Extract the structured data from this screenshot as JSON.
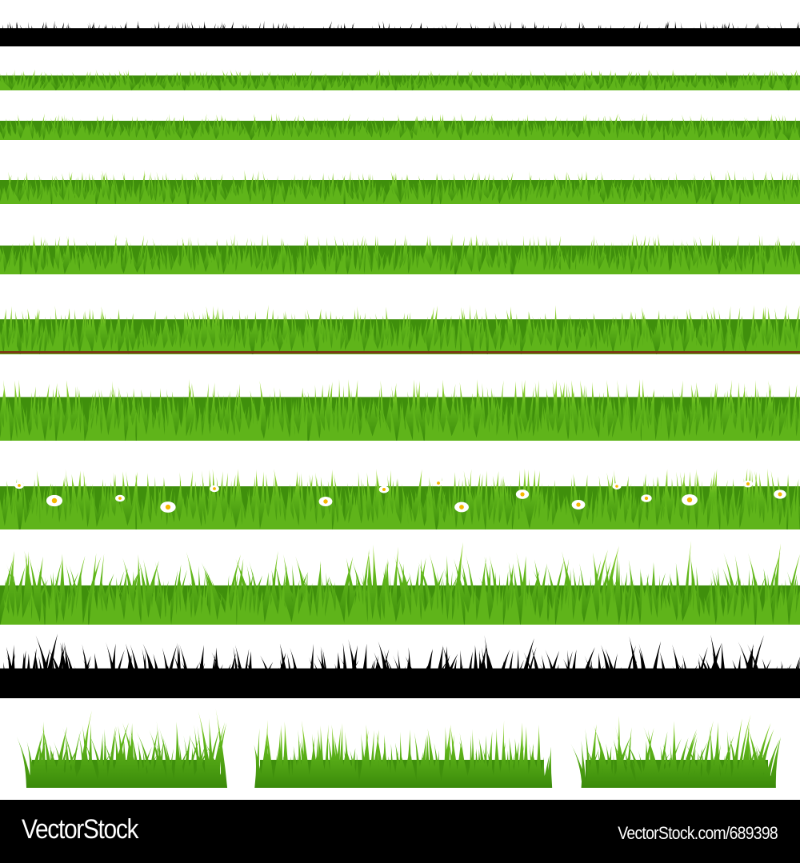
{
  "colors": {
    "silhouette": "#000000",
    "grass_dark": "#3f8f0c",
    "grass_mid": "#5fb41a",
    "grass_light": "#a6dc3a",
    "soil": "#7a3a14",
    "flower_petal": "#ffffff",
    "flower_center": "#f5b800"
  },
  "strips": [
    {
      "name": "black-grass-border-thin",
      "style": "silhouette"
    },
    {
      "name": "green-grass-border-1",
      "style": "green"
    },
    {
      "name": "green-grass-border-2",
      "style": "green"
    },
    {
      "name": "green-grass-border-3",
      "style": "green"
    },
    {
      "name": "green-grass-border-4",
      "style": "green"
    },
    {
      "name": "green-grass-border-wide-leaves",
      "style": "green-soil"
    },
    {
      "name": "green-grass-border-tall",
      "style": "green"
    },
    {
      "name": "green-grass-border-flowers",
      "style": "green-flowers"
    },
    {
      "name": "green-grass-border-wispy",
      "style": "green-wispy"
    },
    {
      "name": "black-grass-border-wispy",
      "style": "silhouette-wispy"
    }
  ],
  "clumps": [
    "grass-clump-left",
    "grass-clump-center",
    "grass-clump-right"
  ],
  "footer": {
    "brand": "VectorStock",
    "url": "VectorStock.com/689398"
  }
}
